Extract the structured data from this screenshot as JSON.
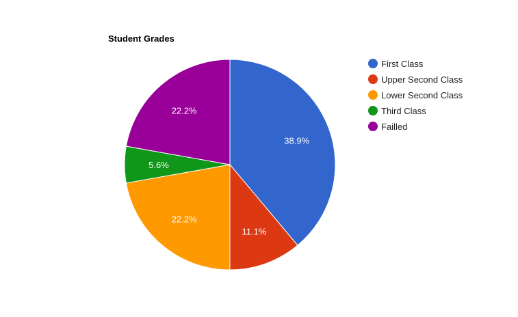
{
  "chart_data": {
    "type": "pie",
    "title": "Student Grades",
    "categories": [
      "First Class",
      "Upper Second Class",
      "Lower Second Class",
      "Third Class",
      "Failled"
    ],
    "values": [
      38.9,
      11.1,
      22.2,
      5.6,
      22.2
    ],
    "labels": [
      "38.9%",
      "11.1%",
      "22.2%",
      "5.6%",
      "22.2%"
    ],
    "colors": [
      "#3366cc",
      "#dc3912",
      "#ff9900",
      "#109618",
      "#990099"
    ],
    "legend_position": "right",
    "start_angle": "12 o'clock, clockwise"
  }
}
